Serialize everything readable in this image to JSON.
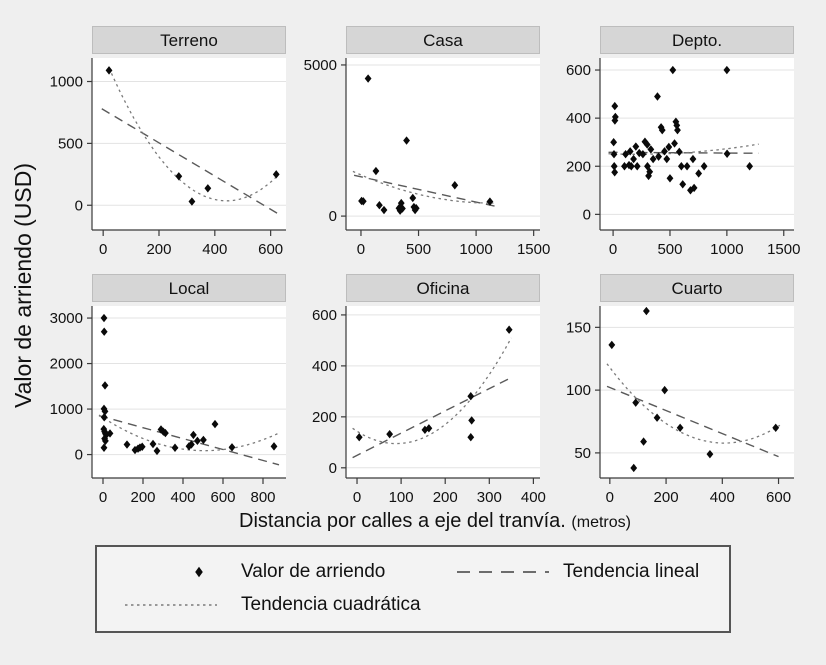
{
  "ylabel": "Valor de arriendo (USD)",
  "xlabel": "Distancia por calles a eje del tranvía.",
  "xlabel_unit": "(metros)",
  "legend": {
    "marker_label": "Valor de arriendo",
    "linear_label": "Tendencia lineal",
    "quad_label": "Tendencia cuadrática"
  },
  "colors": {
    "page_bg": "#efefef",
    "plot_bg": "#ffffff",
    "header_bg": "#d6d6d6",
    "grid": "#e3e3e3",
    "axis": "#3a3a3a",
    "point": "#0a0a0a",
    "linear": "#5a5a5a",
    "quad": "#7a7a7a"
  },
  "chart_data": [
    {
      "type": "scatter",
      "title": "Terreno",
      "xlim": [
        -40,
        655
      ],
      "ylim": [
        -200,
        1190
      ],
      "xticks": [
        0,
        200,
        400,
        600
      ],
      "yticks": [
        0,
        500,
        1000
      ],
      "points": [
        [
          21,
          1090
        ],
        [
          271,
          234
        ],
        [
          318,
          30
        ],
        [
          375,
          137
        ],
        [
          620,
          250
        ]
      ],
      "trend_linear": [
        [
          -5,
          780
        ],
        [
          635,
          -80
        ]
      ],
      "trend_quadratic": [
        [
          21,
          1110
        ],
        [
          403,
          45
        ],
        [
          628,
          245
        ]
      ]
    },
    {
      "type": "scatter",
      "title": "Casa",
      "xlim": [
        -130,
        1555
      ],
      "ylim": [
        -460,
        5230
      ],
      "xticks": [
        0,
        500,
        1000,
        1500
      ],
      "yticks": [
        0,
        5000
      ],
      "points": [
        [
          5,
          500
        ],
        [
          20,
          490
        ],
        [
          62,
          4550
        ],
        [
          130,
          1490
        ],
        [
          160,
          360
        ],
        [
          200,
          200
        ],
        [
          330,
          260
        ],
        [
          340,
          180
        ],
        [
          350,
          430
        ],
        [
          360,
          250
        ],
        [
          396,
          2500
        ],
        [
          450,
          600
        ],
        [
          460,
          300
        ],
        [
          470,
          200
        ],
        [
          480,
          260
        ],
        [
          815,
          1020
        ],
        [
          1120,
          480
        ]
      ],
      "trend_linear": [
        [
          -60,
          1350
        ],
        [
          1160,
          330
        ]
      ],
      "trend_quadratic": [
        [
          -70,
          1480
        ],
        [
          650,
          600
        ],
        [
          1150,
          430
        ]
      ]
    },
    {
      "type": "scatter",
      "title": "Depto.",
      "xlim": [
        -115,
        1590
      ],
      "ylim": [
        -65,
        650
      ],
      "xticks": [
        0,
        500,
        1000,
        1500
      ],
      "yticks": [
        0,
        200,
        400,
        600
      ],
      "points": [
        [
          5,
          300
        ],
        [
          8,
          250
        ],
        [
          10,
          200
        ],
        [
          14,
          175
        ],
        [
          15,
          450
        ],
        [
          16,
          390
        ],
        [
          20,
          405
        ],
        [
          100,
          200
        ],
        [
          110,
          250
        ],
        [
          140,
          205
        ],
        [
          150,
          262
        ],
        [
          160,
          200
        ],
        [
          180,
          230
        ],
        [
          200,
          282
        ],
        [
          212,
          200
        ],
        [
          230,
          255
        ],
        [
          262,
          250
        ],
        [
          280,
          302
        ],
        [
          300,
          290
        ],
        [
          302,
          200
        ],
        [
          312,
          160
        ],
        [
          322,
          177
        ],
        [
          332,
          270
        ],
        [
          352,
          230
        ],
        [
          390,
          490
        ],
        [
          400,
          240
        ],
        [
          422,
          362
        ],
        [
          432,
          350
        ],
        [
          452,
          262
        ],
        [
          472,
          230
        ],
        [
          490,
          280
        ],
        [
          500,
          150
        ],
        [
          525,
          600
        ],
        [
          540,
          295
        ],
        [
          552,
          385
        ],
        [
          560,
          370
        ],
        [
          566,
          350
        ],
        [
          582,
          260
        ],
        [
          600,
          200
        ],
        [
          612,
          125
        ],
        [
          650,
          200
        ],
        [
          680,
          100
        ],
        [
          702,
          230
        ],
        [
          712,
          110
        ],
        [
          752,
          170
        ],
        [
          800,
          200
        ],
        [
          1000,
          600
        ],
        [
          1002,
          252
        ],
        [
          1200,
          200
        ]
      ],
      "trend_linear": [
        [
          -40,
          258
        ],
        [
          1280,
          254
        ]
      ],
      "trend_quadratic": [
        [
          -40,
          252
        ],
        [
          620,
          256
        ],
        [
          1280,
          292
        ]
      ]
    },
    {
      "type": "scatter",
      "title": "Local",
      "xlim": [
        -55,
        915
      ],
      "ylim": [
        -515,
        3265
      ],
      "xticks": [
        0,
        200,
        400,
        600,
        800
      ],
      "yticks": [
        0,
        1000,
        2000,
        3000
      ],
      "points": [
        [
          5,
          3000
        ],
        [
          6,
          2700
        ],
        [
          10,
          1520
        ],
        [
          5,
          1005
        ],
        [
          10,
          950
        ],
        [
          6,
          820
        ],
        [
          4,
          560
        ],
        [
          8,
          505
        ],
        [
          12,
          460
        ],
        [
          16,
          430
        ],
        [
          8,
          350
        ],
        [
          12,
          300
        ],
        [
          5,
          150
        ],
        [
          35,
          465
        ],
        [
          120,
          220
        ],
        [
          160,
          100
        ],
        [
          175,
          130
        ],
        [
          185,
          155
        ],
        [
          196,
          172
        ],
        [
          250,
          232
        ],
        [
          270,
          80
        ],
        [
          290,
          552
        ],
        [
          302,
          502
        ],
        [
          312,
          472
        ],
        [
          360,
          150
        ],
        [
          430,
          182
        ],
        [
          442,
          222
        ],
        [
          452,
          432
        ],
        [
          472,
          302
        ],
        [
          502,
          322
        ],
        [
          560,
          670
        ],
        [
          645,
          160
        ],
        [
          855,
          180
        ]
      ],
      "trend_linear": [
        [
          -20,
          855
        ],
        [
          880,
          -225
        ]
      ],
      "trend_quadratic": [
        [
          -20,
          870
        ],
        [
          610,
          115
        ],
        [
          885,
          485
        ]
      ]
    },
    {
      "type": "scatter",
      "title": "Oficina",
      "xlim": [
        -25,
        415
      ],
      "ylim": [
        -40,
        635
      ],
      "xticks": [
        0,
        100,
        200,
        300,
        400
      ],
      "yticks": [
        0,
        200,
        400,
        600
      ],
      "points": [
        [
          5,
          120
        ],
        [
          74,
          132
        ],
        [
          154,
          149
        ],
        [
          163,
          155
        ],
        [
          258,
          281
        ],
        [
          260,
          186
        ],
        [
          258,
          120
        ],
        [
          345,
          542
        ]
      ],
      "trend_linear": [
        [
          -10,
          40
        ],
        [
          345,
          350
        ]
      ],
      "trend_quadratic": [
        [
          -10,
          155
        ],
        [
          90,
          95
        ],
        [
          350,
          510
        ]
      ]
    },
    {
      "type": "scatter",
      "title": "Cuarto",
      "xlim": [
        -35,
        655
      ],
      "ylim": [
        30,
        167
      ],
      "xticks": [
        0,
        200,
        400,
        600
      ],
      "yticks": [
        50,
        100,
        150
      ],
      "points": [
        [
          7,
          136
        ],
        [
          85,
          38
        ],
        [
          92,
          90
        ],
        [
          120,
          59
        ],
        [
          130,
          163
        ],
        [
          168,
          78
        ],
        [
          195,
          100
        ],
        [
          250,
          70
        ],
        [
          356,
          49
        ],
        [
          590,
          70
        ]
      ],
      "trend_linear": [
        [
          -10,
          103
        ],
        [
          600,
          47
        ]
      ],
      "trend_quadratic": [
        [
          -10,
          121
        ],
        [
          430,
          58
        ],
        [
          605,
          72
        ]
      ]
    }
  ]
}
